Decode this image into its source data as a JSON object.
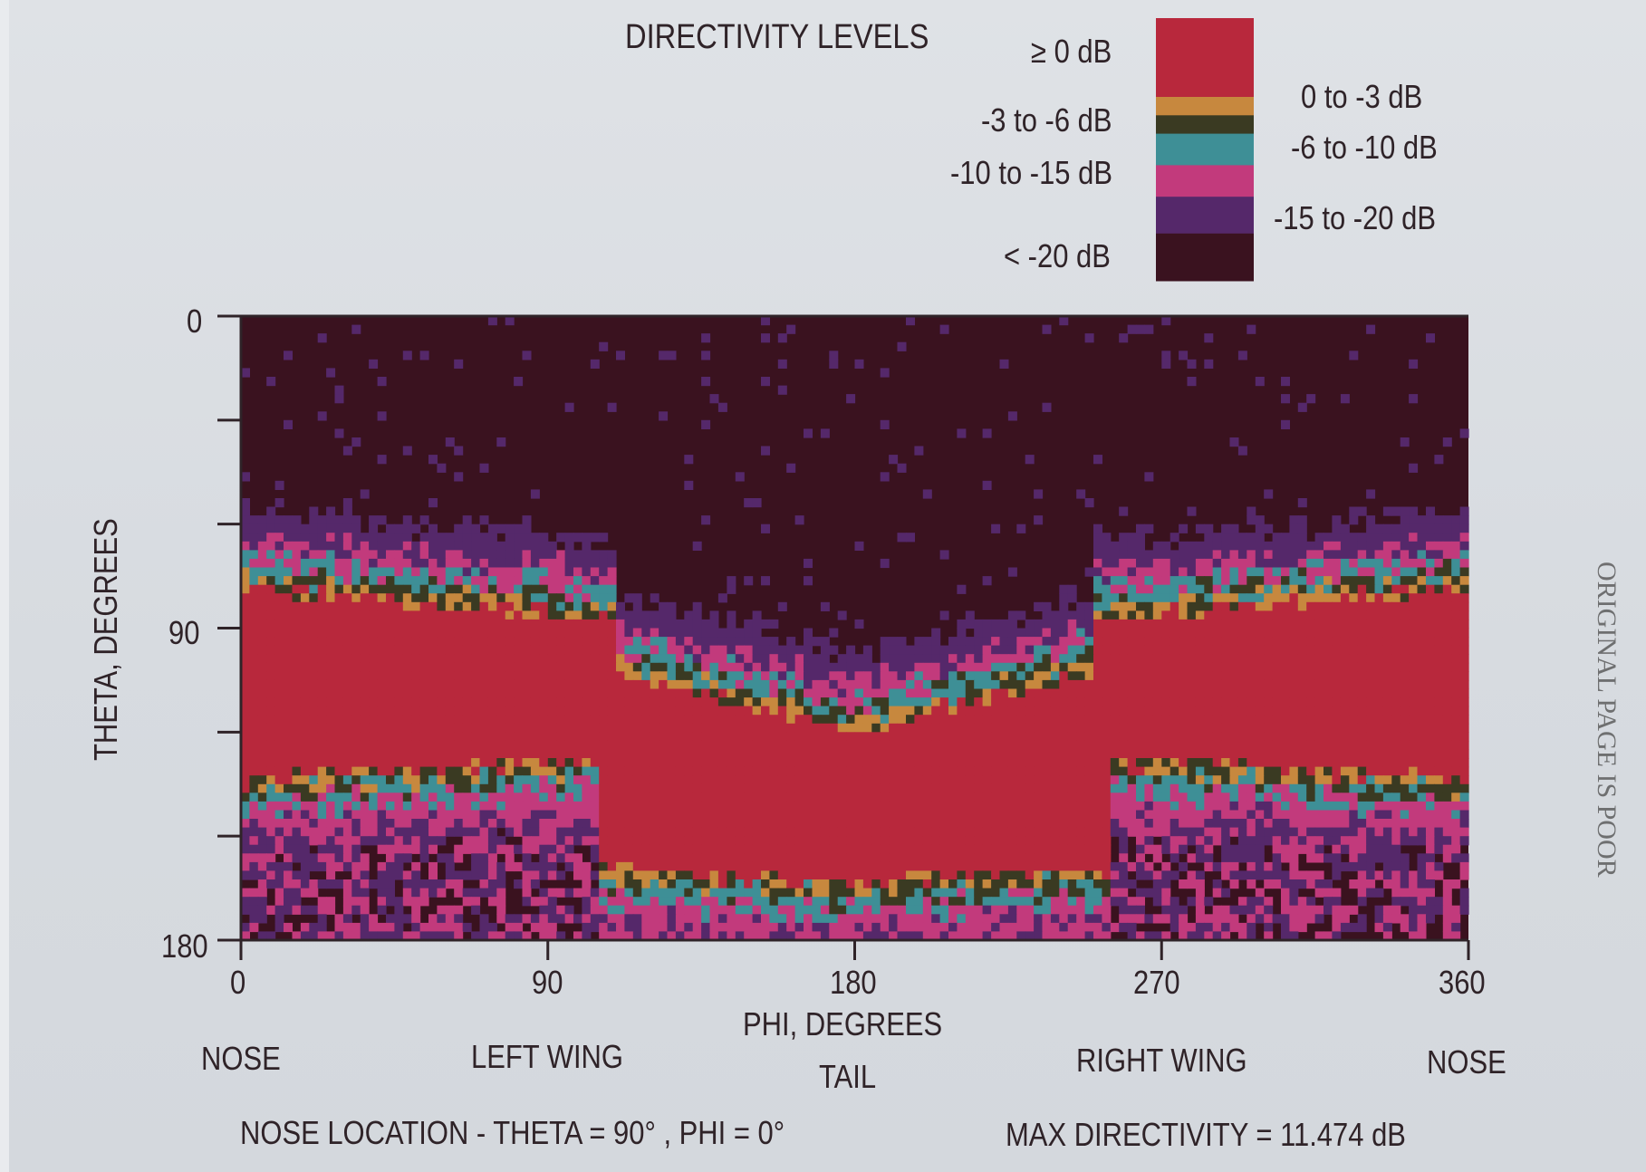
{
  "legend": {
    "title": "DIRECTIVITY LEVELS",
    "levels": [
      {
        "label": "≥ 0 dB",
        "color": "#b8283c"
      },
      {
        "label": "0 to -3 dB",
        "color": "#c7883e"
      },
      {
        "label": "-3 to -6 dB",
        "color": "#3a3a22"
      },
      {
        "label": "-6 to -10 dB",
        "color": "#3e8f96"
      },
      {
        "label": "-10 to -15 dB",
        "color": "#c23a7c"
      },
      {
        "label": "-15 to -20 dB",
        "color": "#55286a"
      },
      {
        "label": "< -20 dB",
        "color": "#3a121f"
      }
    ]
  },
  "chart_data": {
    "type": "heatmap",
    "title": "DIRECTIVITY LEVELS",
    "xlabel": "PHI, DEGREES",
    "ylabel": "THETA, DEGREES",
    "xlim": [
      0,
      360
    ],
    "ylim": [
      0,
      180
    ],
    "x_ticks": [
      "0",
      "90",
      "180",
      "270",
      "360"
    ],
    "y_ticks": [
      "0",
      "90",
      "180"
    ],
    "y_minor_ticks": [
      30,
      60,
      120,
      150
    ],
    "x_region_labels": [
      {
        "x": 0,
        "label": "NOSE"
      },
      {
        "x": 90,
        "label": "LEFT WING"
      },
      {
        "x": 180,
        "label": "TAIL"
      },
      {
        "x": 270,
        "label": "RIGHT WING"
      },
      {
        "x": 360,
        "label": "NOSE"
      }
    ],
    "regions": [
      {
        "description": "level >= 0 dB lobe",
        "level": "≥ 0 dB",
        "phi_range": [
          0,
          110
        ],
        "theta_range": [
          80,
          135
        ]
      },
      {
        "description": "level >= 0 dB lobe",
        "level": "≥ 0 dB",
        "phi_range": [
          250,
          360
        ],
        "theta_range": [
          80,
          135
        ]
      },
      {
        "description": "level >= 0 dB lobe",
        "level": "≥ 0 dB",
        "phi_range": [
          110,
          250
        ],
        "theta_range": [
          115,
          165
        ]
      },
      {
        "description": "below -20 dB",
        "level": "< -20 dB",
        "phi_range": [
          0,
          360
        ],
        "theta_range": [
          0,
          50
        ]
      }
    ]
  },
  "footer": {
    "nose_location": "NOSE LOCATION - THETA = 90° , PHI = 0°",
    "max_directivity": "MAX DIRECTIVITY = 11.474 dB"
  },
  "side_note": "ORIGINAL PAGE IS POOR"
}
